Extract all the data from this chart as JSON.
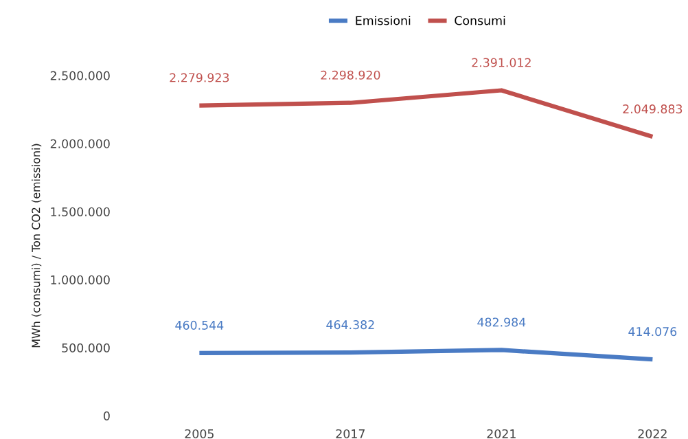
{
  "chart_data": {
    "type": "line",
    "ylabel": "MWh (consumi) / Ton CO2 (emissioni)",
    "categories": [
      "2005",
      "2017",
      "2021",
      "2022"
    ],
    "series": [
      {
        "name": "Emissioni",
        "color": "#4a7bc4",
        "values": [
          460544,
          464382,
          482984,
          414076
        ],
        "value_labels": [
          "460.544",
          "464.382",
          "482.984",
          "414.076"
        ]
      },
      {
        "name": "Consumi",
        "color": "#c0504d",
        "values": [
          2279923,
          2298920,
          2391012,
          2049883
        ],
        "value_labels": [
          "2.279.923",
          "2.298.920",
          "2.391.012",
          "2.049.883"
        ]
      }
    ],
    "ylim": [
      0,
      2500000
    ],
    "yticks": [
      0,
      {
        "value": 500000,
        "label": "500.000"
      },
      {
        "value": 1000000,
        "label": "1.000.000"
      },
      {
        "value": 1500000,
        "label": "1.500.000"
      },
      {
        "value": 2000000,
        "label": "2.000.000"
      },
      {
        "value": 2500000,
        "label": "2.500.000"
      }
    ],
    "grid": false,
    "legend": "top",
    "marker": "none",
    "line_style": "solid"
  }
}
